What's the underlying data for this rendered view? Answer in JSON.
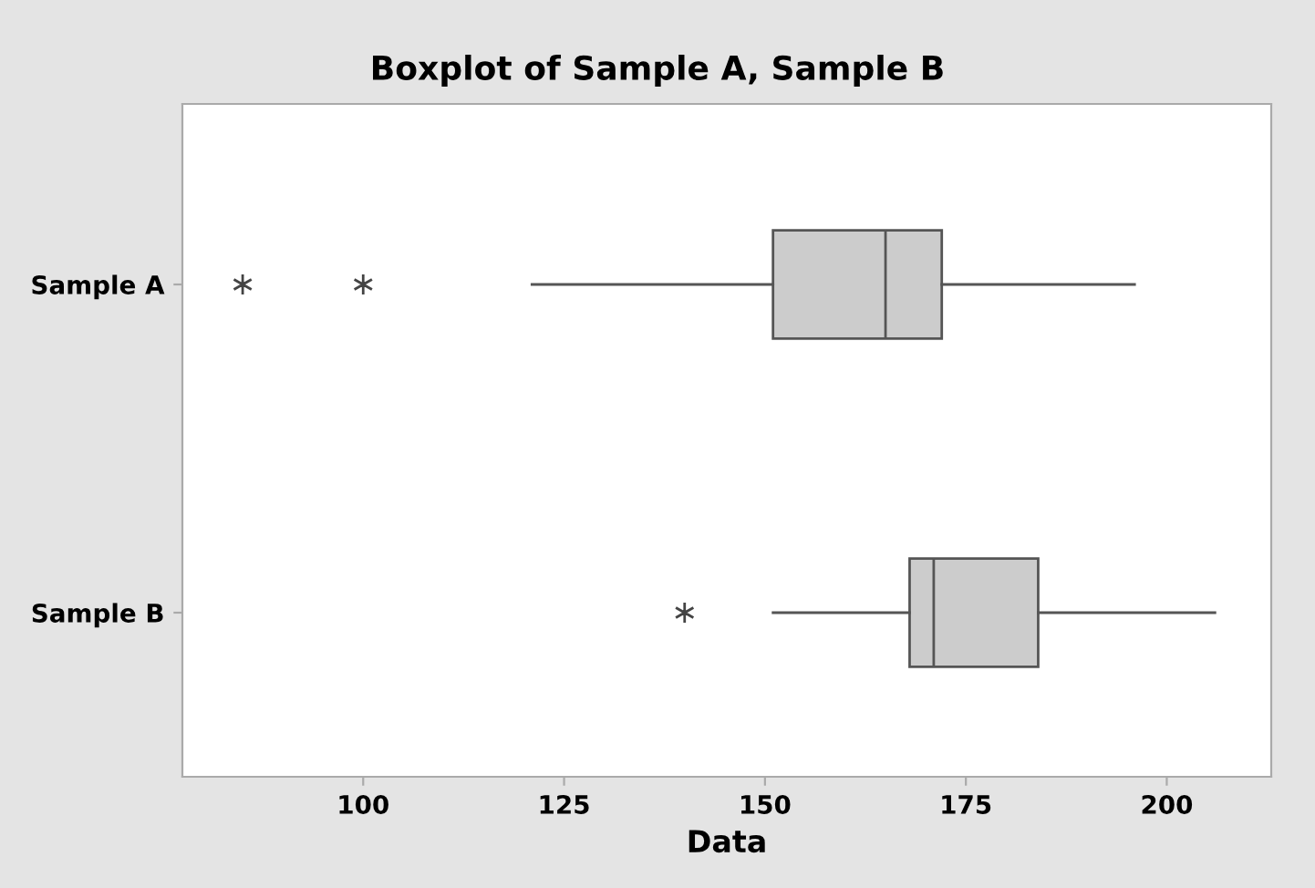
{
  "chart_data": {
    "type": "box",
    "title": "Boxplot of Sample A, Sample B",
    "xlabel": "Data",
    "orientation": "horizontal",
    "categories": [
      "Sample A",
      "Sample B"
    ],
    "boxes": [
      {
        "low": 121,
        "q1": 151,
        "median": 165,
        "q3": 172,
        "high": 196,
        "outliers": [
          85,
          100
        ]
      },
      {
        "low": 151,
        "q1": 168,
        "median": 171,
        "q3": 184,
        "high": 206,
        "outliers": [
          140
        ]
      }
    ],
    "color": "#cccccc",
    "xlim": [
      77.5,
      213
    ],
    "xticks": [
      100,
      125,
      150,
      175,
      200
    ],
    "grid": false,
    "legend": false
  }
}
